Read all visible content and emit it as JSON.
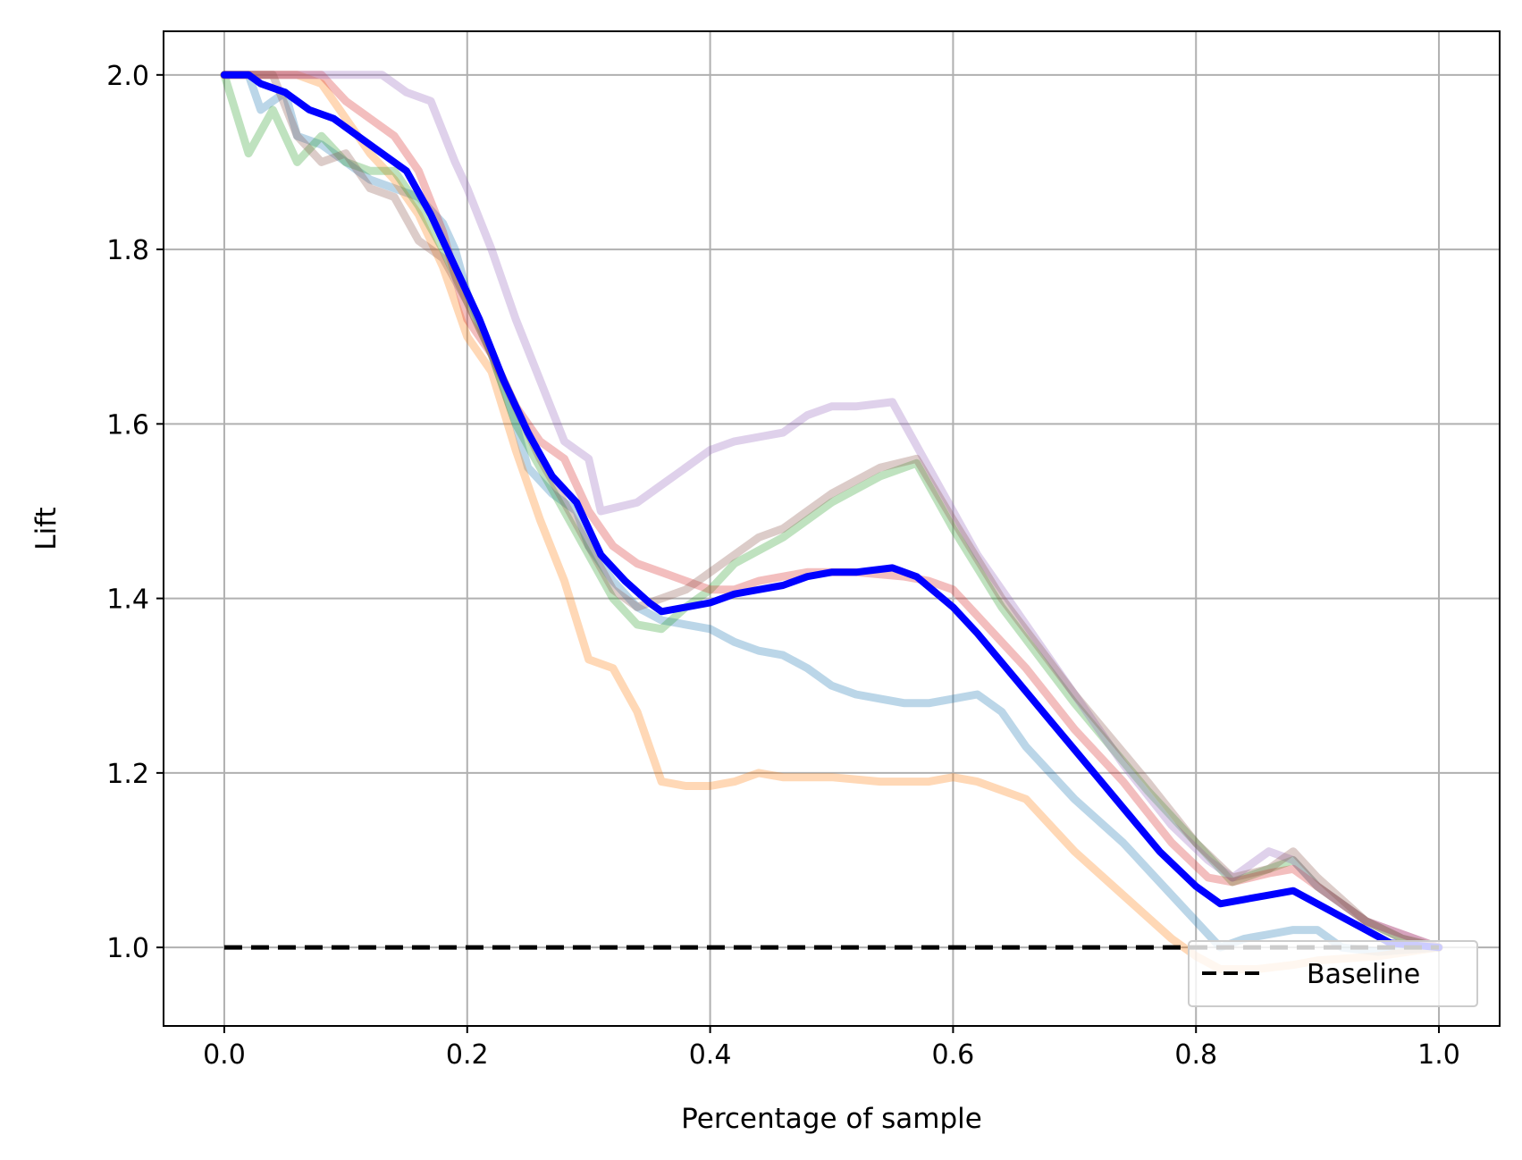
{
  "chart_data": {
    "type": "line",
    "title": "",
    "xlabel": "Percentage of sample",
    "ylabel": "Lift",
    "xlim": [
      -0.05,
      1.05
    ],
    "ylim": [
      0.91,
      2.05
    ],
    "xticks": [
      0.0,
      0.2,
      0.4,
      0.6,
      0.8,
      1.0
    ],
    "xtick_labels": [
      "0.0",
      "0.2",
      "0.4",
      "0.6",
      "0.8",
      "1.0"
    ],
    "yticks": [
      1.0,
      1.2,
      1.4,
      1.6,
      1.8,
      2.0
    ],
    "ytick_labels": [
      "1.0",
      "1.2",
      "1.4",
      "1.6",
      "1.8",
      "2.0"
    ],
    "grid": true,
    "legend": {
      "position": "bottom-right",
      "entries": [
        "Baseline"
      ]
    },
    "series": [
      {
        "color": "#1f77b4",
        "alpha": 0.3,
        "points": [
          [
            0,
            2.0
          ],
          [
            0.02,
            2.0
          ],
          [
            0.03,
            1.96
          ],
          [
            0.05,
            1.98
          ],
          [
            0.06,
            1.93
          ],
          [
            0.08,
            1.92
          ],
          [
            0.1,
            1.9
          ],
          [
            0.12,
            1.88
          ],
          [
            0.14,
            1.87
          ],
          [
            0.16,
            1.86
          ],
          [
            0.18,
            1.83
          ],
          [
            0.19,
            1.8
          ],
          [
            0.2,
            1.75
          ],
          [
            0.22,
            1.68
          ],
          [
            0.24,
            1.6
          ],
          [
            0.25,
            1.55
          ],
          [
            0.27,
            1.52
          ],
          [
            0.29,
            1.5
          ],
          [
            0.3,
            1.46
          ],
          [
            0.32,
            1.42
          ],
          [
            0.34,
            1.39
          ],
          [
            0.36,
            1.375
          ],
          [
            0.38,
            1.37
          ],
          [
            0.4,
            1.365
          ],
          [
            0.42,
            1.35
          ],
          [
            0.44,
            1.34
          ],
          [
            0.46,
            1.335
          ],
          [
            0.48,
            1.32
          ],
          [
            0.5,
            1.3
          ],
          [
            0.52,
            1.29
          ],
          [
            0.54,
            1.285
          ],
          [
            0.56,
            1.28
          ],
          [
            0.58,
            1.28
          ],
          [
            0.6,
            1.285
          ],
          [
            0.62,
            1.29
          ],
          [
            0.64,
            1.27
          ],
          [
            0.66,
            1.23
          ],
          [
            0.7,
            1.17
          ],
          [
            0.74,
            1.12
          ],
          [
            0.78,
            1.06
          ],
          [
            0.8,
            1.03
          ],
          [
            0.82,
            1.0
          ],
          [
            0.84,
            1.01
          ],
          [
            0.86,
            1.015
          ],
          [
            0.88,
            1.02
          ],
          [
            0.9,
            1.02
          ],
          [
            0.92,
            1.0
          ],
          [
            0.95,
            0.995
          ],
          [
            1.0,
            1.0
          ]
        ]
      },
      {
        "color": "#ff7f0e",
        "alpha": 0.3,
        "points": [
          [
            0,
            2.0
          ],
          [
            0.04,
            2.0
          ],
          [
            0.06,
            2.0
          ],
          [
            0.08,
            1.99
          ],
          [
            0.1,
            1.95
          ],
          [
            0.12,
            1.91
          ],
          [
            0.14,
            1.88
          ],
          [
            0.16,
            1.84
          ],
          [
            0.18,
            1.78
          ],
          [
            0.2,
            1.7
          ],
          [
            0.22,
            1.66
          ],
          [
            0.24,
            1.57
          ],
          [
            0.26,
            1.49
          ],
          [
            0.28,
            1.42
          ],
          [
            0.3,
            1.33
          ],
          [
            0.32,
            1.32
          ],
          [
            0.34,
            1.27
          ],
          [
            0.36,
            1.19
          ],
          [
            0.38,
            1.185
          ],
          [
            0.4,
            1.185
          ],
          [
            0.42,
            1.19
          ],
          [
            0.44,
            1.2
          ],
          [
            0.46,
            1.195
          ],
          [
            0.5,
            1.195
          ],
          [
            0.54,
            1.19
          ],
          [
            0.58,
            1.19
          ],
          [
            0.6,
            1.195
          ],
          [
            0.62,
            1.19
          ],
          [
            0.64,
            1.18
          ],
          [
            0.66,
            1.17
          ],
          [
            0.7,
            1.11
          ],
          [
            0.74,
            1.06
          ],
          [
            0.78,
            1.01
          ],
          [
            0.8,
            0.99
          ],
          [
            0.82,
            0.975
          ],
          [
            0.85,
            0.975
          ],
          [
            0.88,
            0.98
          ],
          [
            0.9,
            0.985
          ],
          [
            0.95,
            0.99
          ],
          [
            1.0,
            1.0
          ]
        ]
      },
      {
        "color": "#2ca02c",
        "alpha": 0.3,
        "points": [
          [
            0,
            2.0
          ],
          [
            0.02,
            1.91
          ],
          [
            0.04,
            1.96
          ],
          [
            0.06,
            1.9
          ],
          [
            0.08,
            1.93
          ],
          [
            0.1,
            1.9
          ],
          [
            0.12,
            1.89
          ],
          [
            0.14,
            1.89
          ],
          [
            0.16,
            1.85
          ],
          [
            0.18,
            1.8
          ],
          [
            0.2,
            1.74
          ],
          [
            0.22,
            1.68
          ],
          [
            0.24,
            1.6
          ],
          [
            0.26,
            1.55
          ],
          [
            0.28,
            1.5
          ],
          [
            0.3,
            1.45
          ],
          [
            0.32,
            1.4
          ],
          [
            0.34,
            1.37
          ],
          [
            0.36,
            1.365
          ],
          [
            0.38,
            1.39
          ],
          [
            0.4,
            1.41
          ],
          [
            0.42,
            1.44
          ],
          [
            0.46,
            1.47
          ],
          [
            0.5,
            1.51
          ],
          [
            0.54,
            1.54
          ],
          [
            0.57,
            1.555
          ],
          [
            0.6,
            1.48
          ],
          [
            0.64,
            1.39
          ],
          [
            0.7,
            1.28
          ],
          [
            0.76,
            1.18
          ],
          [
            0.8,
            1.12
          ],
          [
            0.83,
            1.075
          ],
          [
            0.86,
            1.09
          ],
          [
            0.88,
            1.1
          ],
          [
            0.9,
            1.07
          ],
          [
            0.94,
            1.03
          ],
          [
            0.97,
            1.01
          ],
          [
            1.0,
            1.0
          ]
        ]
      },
      {
        "color": "#d62728",
        "alpha": 0.3,
        "points": [
          [
            0,
            2.0
          ],
          [
            0.08,
            2.0
          ],
          [
            0.1,
            1.97
          ],
          [
            0.12,
            1.95
          ],
          [
            0.14,
            1.93
          ],
          [
            0.16,
            1.89
          ],
          [
            0.18,
            1.82
          ],
          [
            0.2,
            1.72
          ],
          [
            0.22,
            1.68
          ],
          [
            0.24,
            1.62
          ],
          [
            0.26,
            1.58
          ],
          [
            0.28,
            1.56
          ],
          [
            0.3,
            1.5
          ],
          [
            0.32,
            1.46
          ],
          [
            0.34,
            1.44
          ],
          [
            0.36,
            1.43
          ],
          [
            0.38,
            1.42
          ],
          [
            0.4,
            1.41
          ],
          [
            0.42,
            1.41
          ],
          [
            0.44,
            1.42
          ],
          [
            0.48,
            1.43
          ],
          [
            0.52,
            1.43
          ],
          [
            0.56,
            1.425
          ],
          [
            0.58,
            1.42
          ],
          [
            0.6,
            1.41
          ],
          [
            0.62,
            1.38
          ],
          [
            0.66,
            1.32
          ],
          [
            0.7,
            1.25
          ],
          [
            0.74,
            1.19
          ],
          [
            0.78,
            1.12
          ],
          [
            0.81,
            1.08
          ],
          [
            0.83,
            1.075
          ],
          [
            0.86,
            1.085
          ],
          [
            0.88,
            1.09
          ],
          [
            0.9,
            1.07
          ],
          [
            0.94,
            1.03
          ],
          [
            1.0,
            1.0
          ]
        ]
      },
      {
        "color": "#9467bd",
        "alpha": 0.3,
        "points": [
          [
            0,
            2.0
          ],
          [
            0.13,
            2.0
          ],
          [
            0.15,
            1.98
          ],
          [
            0.17,
            1.97
          ],
          [
            0.19,
            1.9
          ],
          [
            0.2,
            1.87
          ],
          [
            0.22,
            1.8
          ],
          [
            0.24,
            1.72
          ],
          [
            0.26,
            1.65
          ],
          [
            0.28,
            1.58
          ],
          [
            0.3,
            1.56
          ],
          [
            0.31,
            1.5
          ],
          [
            0.34,
            1.51
          ],
          [
            0.36,
            1.53
          ],
          [
            0.38,
            1.55
          ],
          [
            0.4,
            1.57
          ],
          [
            0.42,
            1.58
          ],
          [
            0.44,
            1.585
          ],
          [
            0.46,
            1.59
          ],
          [
            0.48,
            1.61
          ],
          [
            0.5,
            1.62
          ],
          [
            0.52,
            1.62
          ],
          [
            0.55,
            1.625
          ],
          [
            0.58,
            1.55
          ],
          [
            0.62,
            1.45
          ],
          [
            0.66,
            1.37
          ],
          [
            0.7,
            1.29
          ],
          [
            0.74,
            1.21
          ],
          [
            0.78,
            1.14
          ],
          [
            0.81,
            1.1
          ],
          [
            0.83,
            1.08
          ],
          [
            0.86,
            1.11
          ],
          [
            0.88,
            1.1
          ],
          [
            0.9,
            1.07
          ],
          [
            0.94,
            1.03
          ],
          [
            1.0,
            1.0
          ]
        ]
      },
      {
        "color": "#8c564b",
        "alpha": 0.3,
        "points": [
          [
            0,
            2.0
          ],
          [
            0.04,
            2.0
          ],
          [
            0.06,
            1.93
          ],
          [
            0.08,
            1.9
          ],
          [
            0.1,
            1.91
          ],
          [
            0.12,
            1.87
          ],
          [
            0.14,
            1.86
          ],
          [
            0.16,
            1.81
          ],
          [
            0.18,
            1.79
          ],
          [
            0.2,
            1.74
          ],
          [
            0.22,
            1.68
          ],
          [
            0.24,
            1.62
          ],
          [
            0.26,
            1.56
          ],
          [
            0.28,
            1.51
          ],
          [
            0.3,
            1.46
          ],
          [
            0.32,
            1.41
          ],
          [
            0.34,
            1.39
          ],
          [
            0.36,
            1.4
          ],
          [
            0.38,
            1.41
          ],
          [
            0.4,
            1.43
          ],
          [
            0.42,
            1.45
          ],
          [
            0.44,
            1.47
          ],
          [
            0.46,
            1.48
          ],
          [
            0.5,
            1.52
          ],
          [
            0.54,
            1.55
          ],
          [
            0.57,
            1.56
          ],
          [
            0.6,
            1.49
          ],
          [
            0.64,
            1.4
          ],
          [
            0.7,
            1.29
          ],
          [
            0.76,
            1.19
          ],
          [
            0.8,
            1.12
          ],
          [
            0.83,
            1.08
          ],
          [
            0.86,
            1.09
          ],
          [
            0.88,
            1.11
          ],
          [
            0.9,
            1.08
          ],
          [
            0.94,
            1.03
          ],
          [
            0.97,
            1.01
          ],
          [
            1.0,
            1.0
          ]
        ]
      },
      {
        "color": "#0000ff",
        "alpha": 1.0,
        "points": [
          [
            0,
            2.0
          ],
          [
            0.02,
            2.0
          ],
          [
            0.03,
            1.99
          ],
          [
            0.05,
            1.98
          ],
          [
            0.07,
            1.96
          ],
          [
            0.09,
            1.95
          ],
          [
            0.11,
            1.93
          ],
          [
            0.13,
            1.91
          ],
          [
            0.15,
            1.89
          ],
          [
            0.17,
            1.84
          ],
          [
            0.19,
            1.78
          ],
          [
            0.21,
            1.72
          ],
          [
            0.23,
            1.65
          ],
          [
            0.25,
            1.59
          ],
          [
            0.27,
            1.54
          ],
          [
            0.29,
            1.51
          ],
          [
            0.3,
            1.48
          ],
          [
            0.31,
            1.45
          ],
          [
            0.33,
            1.42
          ],
          [
            0.35,
            1.395
          ],
          [
            0.36,
            1.385
          ],
          [
            0.38,
            1.39
          ],
          [
            0.4,
            1.395
          ],
          [
            0.42,
            1.405
          ],
          [
            0.44,
            1.41
          ],
          [
            0.46,
            1.415
          ],
          [
            0.48,
            1.425
          ],
          [
            0.5,
            1.43
          ],
          [
            0.52,
            1.43
          ],
          [
            0.55,
            1.435
          ],
          [
            0.57,
            1.425
          ],
          [
            0.6,
            1.39
          ],
          [
            0.62,
            1.36
          ],
          [
            0.65,
            1.31
          ],
          [
            0.68,
            1.26
          ],
          [
            0.71,
            1.21
          ],
          [
            0.74,
            1.16
          ],
          [
            0.77,
            1.11
          ],
          [
            0.8,
            1.07
          ],
          [
            0.82,
            1.05
          ],
          [
            0.84,
            1.055
          ],
          [
            0.86,
            1.06
          ],
          [
            0.88,
            1.065
          ],
          [
            0.9,
            1.05
          ],
          [
            0.92,
            1.035
          ],
          [
            0.94,
            1.02
          ],
          [
            0.96,
            1.005
          ],
          [
            1.0,
            1.0
          ]
        ]
      }
    ],
    "baseline": {
      "name": "Baseline",
      "x": [
        0,
        1.0
      ],
      "y": [
        1.0,
        1.0
      ],
      "style": "dashed",
      "color": "#000000"
    }
  }
}
